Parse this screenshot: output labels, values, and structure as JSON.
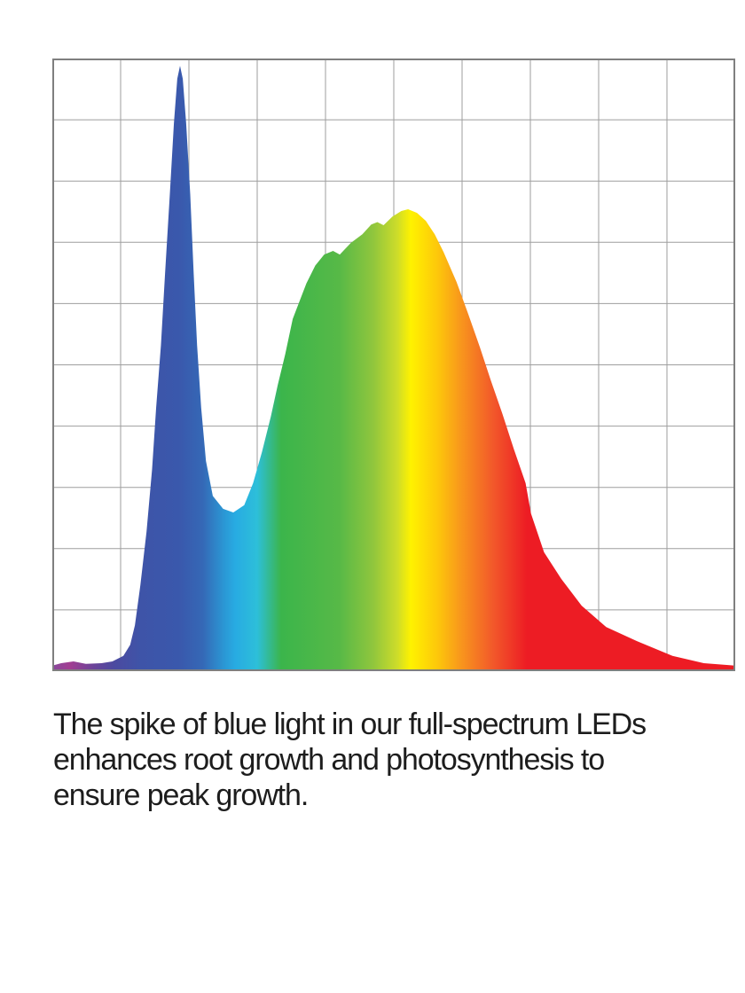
{
  "page": {
    "background": "#ffffff"
  },
  "chart_data": {
    "type": "area",
    "title": "",
    "xlabel": "",
    "ylabel": "",
    "tick_labels": "none",
    "legend": "none",
    "grid": {
      "columns": 10,
      "rows": 10,
      "line_color": "#9e9e9e",
      "border_color": "#7f7f7f",
      "background": "#ffffff"
    },
    "x_range": [
      0,
      1
    ],
    "y_range": [
      0,
      1
    ],
    "features": {
      "blue_spike_peak": {
        "x": 0.187,
        "value": 0.988
      },
      "valley": {
        "x": 0.265,
        "value": 0.259
      },
      "broad_peak": {
        "x": 0.521,
        "value": 0.754
      }
    },
    "points": [
      [
        0.0,
        0.009
      ],
      [
        0.013,
        0.013
      ],
      [
        0.031,
        0.016
      ],
      [
        0.049,
        0.012
      ],
      [
        0.072,
        0.013
      ],
      [
        0.088,
        0.016
      ],
      [
        0.104,
        0.025
      ],
      [
        0.114,
        0.043
      ],
      [
        0.121,
        0.075
      ],
      [
        0.129,
        0.141
      ],
      [
        0.138,
        0.228
      ],
      [
        0.146,
        0.329
      ],
      [
        0.152,
        0.43
      ],
      [
        0.159,
        0.532
      ],
      [
        0.165,
        0.648
      ],
      [
        0.172,
        0.778
      ],
      [
        0.178,
        0.894
      ],
      [
        0.183,
        0.967
      ],
      [
        0.187,
        0.988
      ],
      [
        0.191,
        0.967
      ],
      [
        0.196,
        0.894
      ],
      [
        0.202,
        0.778
      ],
      [
        0.207,
        0.648
      ],
      [
        0.212,
        0.532
      ],
      [
        0.218,
        0.43
      ],
      [
        0.225,
        0.343
      ],
      [
        0.235,
        0.286
      ],
      [
        0.25,
        0.265
      ],
      [
        0.265,
        0.259
      ],
      [
        0.281,
        0.271
      ],
      [
        0.294,
        0.307
      ],
      [
        0.307,
        0.358
      ],
      [
        0.32,
        0.416
      ],
      [
        0.33,
        0.467
      ],
      [
        0.341,
        0.517
      ],
      [
        0.352,
        0.575
      ],
      [
        0.362,
        0.604
      ],
      [
        0.372,
        0.633
      ],
      [
        0.385,
        0.662
      ],
      [
        0.398,
        0.68
      ],
      [
        0.411,
        0.686
      ],
      [
        0.421,
        0.68
      ],
      [
        0.437,
        0.699
      ],
      [
        0.454,
        0.713
      ],
      [
        0.467,
        0.729
      ],
      [
        0.476,
        0.733
      ],
      [
        0.485,
        0.728
      ],
      [
        0.498,
        0.742
      ],
      [
        0.511,
        0.751
      ],
      [
        0.521,
        0.754
      ],
      [
        0.534,
        0.748
      ],
      [
        0.547,
        0.735
      ],
      [
        0.56,
        0.713
      ],
      [
        0.573,
        0.684
      ],
      [
        0.592,
        0.635
      ],
      [
        0.609,
        0.583
      ],
      [
        0.626,
        0.529
      ],
      [
        0.642,
        0.475
      ],
      [
        0.659,
        0.42
      ],
      [
        0.676,
        0.362
      ],
      [
        0.693,
        0.307
      ],
      [
        0.701,
        0.257
      ],
      [
        0.72,
        0.194
      ],
      [
        0.745,
        0.151
      ],
      [
        0.775,
        0.107
      ],
      [
        0.811,
        0.072
      ],
      [
        0.856,
        0.049
      ],
      [
        0.908,
        0.025
      ],
      [
        0.954,
        0.013
      ],
      [
        1.0,
        0.009
      ]
    ],
    "gradient_stops": [
      {
        "offset": 0.0,
        "color": "#87499c"
      },
      {
        "offset": 0.025,
        "color": "#a23e92"
      },
      {
        "offset": 0.06,
        "color": "#6c4499"
      },
      {
        "offset": 0.09,
        "color": "#4c4aa0"
      },
      {
        "offset": 0.13,
        "color": "#3e54a8"
      },
      {
        "offset": 0.185,
        "color": "#3a58ac"
      },
      {
        "offset": 0.22,
        "color": "#3568b6"
      },
      {
        "offset": 0.25,
        "color": "#2b95d3"
      },
      {
        "offset": 0.268,
        "color": "#28abe2"
      },
      {
        "offset": 0.3,
        "color": "#2dbfd9"
      },
      {
        "offset": 0.335,
        "color": "#3bb54b"
      },
      {
        "offset": 0.42,
        "color": "#57b947"
      },
      {
        "offset": 0.47,
        "color": "#90c63d"
      },
      {
        "offset": 0.505,
        "color": "#cddc2a"
      },
      {
        "offset": 0.525,
        "color": "#fef200"
      },
      {
        "offset": 0.565,
        "color": "#fdc60b"
      },
      {
        "offset": 0.6,
        "color": "#f8941d"
      },
      {
        "offset": 0.645,
        "color": "#f2592a"
      },
      {
        "offset": 0.695,
        "color": "#ed1c24"
      },
      {
        "offset": 1.0,
        "color": "#ed1c24"
      }
    ]
  },
  "caption": {
    "text": "The spike of blue light in our full-spectrum LEDs enhances root growth and photosynthesis to ensure peak growth.",
    "lines": [
      "The spike of blue light in our full-spectrum LEDs",
      "enhances root growth and photosynthesis to",
      "ensure peak growth."
    ],
    "color": "#1d1d1d"
  }
}
